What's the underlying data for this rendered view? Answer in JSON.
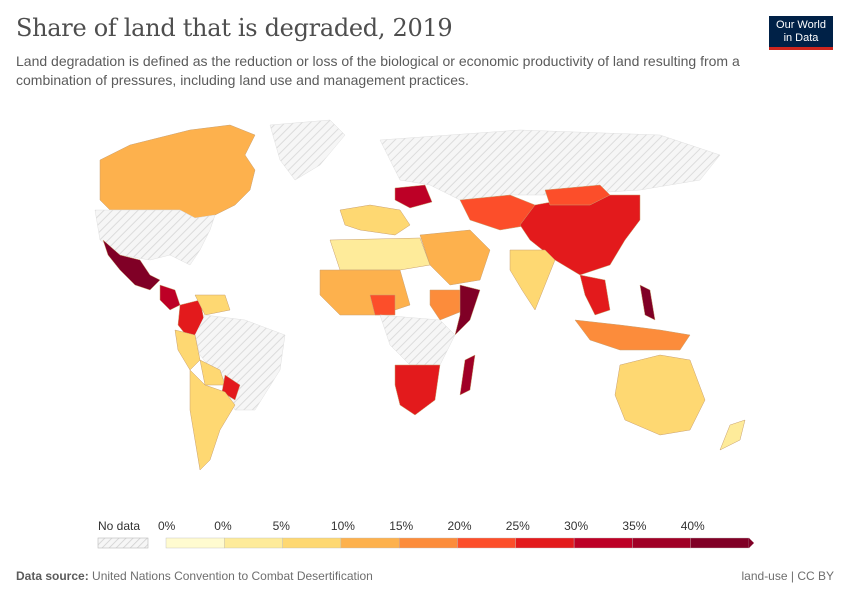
{
  "header": {
    "title": "Share of land that is degraded, 2019",
    "subtitle": "Land degradation is defined as the reduction or loss of the biological or economic productivity of land resulting from a combination of pressures, including land use and management practices.",
    "logo_line1": "Our World",
    "logo_line2": "in Data"
  },
  "legend": {
    "no_data_label": "No data",
    "bins": [
      {
        "label": "0%",
        "color": "#fffbd0"
      },
      {
        "label": "0%",
        "color": "#feeb9a"
      },
      {
        "label": "5%",
        "color": "#fed872"
      },
      {
        "label": "10%",
        "color": "#fdb14d"
      },
      {
        "label": "15%",
        "color": "#fc8c3b"
      },
      {
        "label": "20%",
        "color": "#fc4e2a"
      },
      {
        "label": "25%",
        "color": "#e31a1c"
      },
      {
        "label": "30%",
        "color": "#bd0026"
      },
      {
        "label": "35%",
        "color": "#a00026"
      },
      {
        "label": "40%",
        "color": "#800026"
      }
    ]
  },
  "map_data": {
    "regions": [
      {
        "name": "Canada",
        "bin": 3
      },
      {
        "name": "United States",
        "bin": -1
      },
      {
        "name": "Greenland",
        "bin": -1
      },
      {
        "name": "Mexico",
        "bin": 9
      },
      {
        "name": "Central America",
        "bin": 7
      },
      {
        "name": "Colombia",
        "bin": 6
      },
      {
        "name": "Venezuela",
        "bin": 2
      },
      {
        "name": "Brazil",
        "bin": -1
      },
      {
        "name": "Peru",
        "bin": 2
      },
      {
        "name": "Bolivia",
        "bin": 2
      },
      {
        "name": "Paraguay",
        "bin": 6
      },
      {
        "name": "Argentina & Chile",
        "bin": 2
      },
      {
        "name": "Western Europe",
        "bin": 2
      },
      {
        "name": "Ukraine",
        "bin": 7
      },
      {
        "name": "Russia",
        "bin": -1
      },
      {
        "name": "Kazakhstan",
        "bin": 5
      },
      {
        "name": "China",
        "bin": 6
      },
      {
        "name": "Mongolia",
        "bin": 5
      },
      {
        "name": "India",
        "bin": 2
      },
      {
        "name": "Middle East",
        "bin": 3
      },
      {
        "name": "North Africa",
        "bin": 1
      },
      {
        "name": "West Africa",
        "bin": 3
      },
      {
        "name": "Nigeria",
        "bin": 5
      },
      {
        "name": "Ethiopia",
        "bin": 4
      },
      {
        "name": "Somalia",
        "bin": 9
      },
      {
        "name": "Central Africa",
        "bin": -1
      },
      {
        "name": "Southern Africa",
        "bin": 6
      },
      {
        "name": "Madagascar",
        "bin": 8
      },
      {
        "name": "Southeast Asia",
        "bin": 6
      },
      {
        "name": "Philippines",
        "bin": 9
      },
      {
        "name": "Indonesia",
        "bin": 4
      },
      {
        "name": "Australia",
        "bin": 2
      },
      {
        "name": "New Zealand",
        "bin": 1
      }
    ]
  },
  "footer": {
    "source_label": "Data source:",
    "source_text": "United Nations Convention to Combat Desertification",
    "license": "land-use | CC BY"
  }
}
